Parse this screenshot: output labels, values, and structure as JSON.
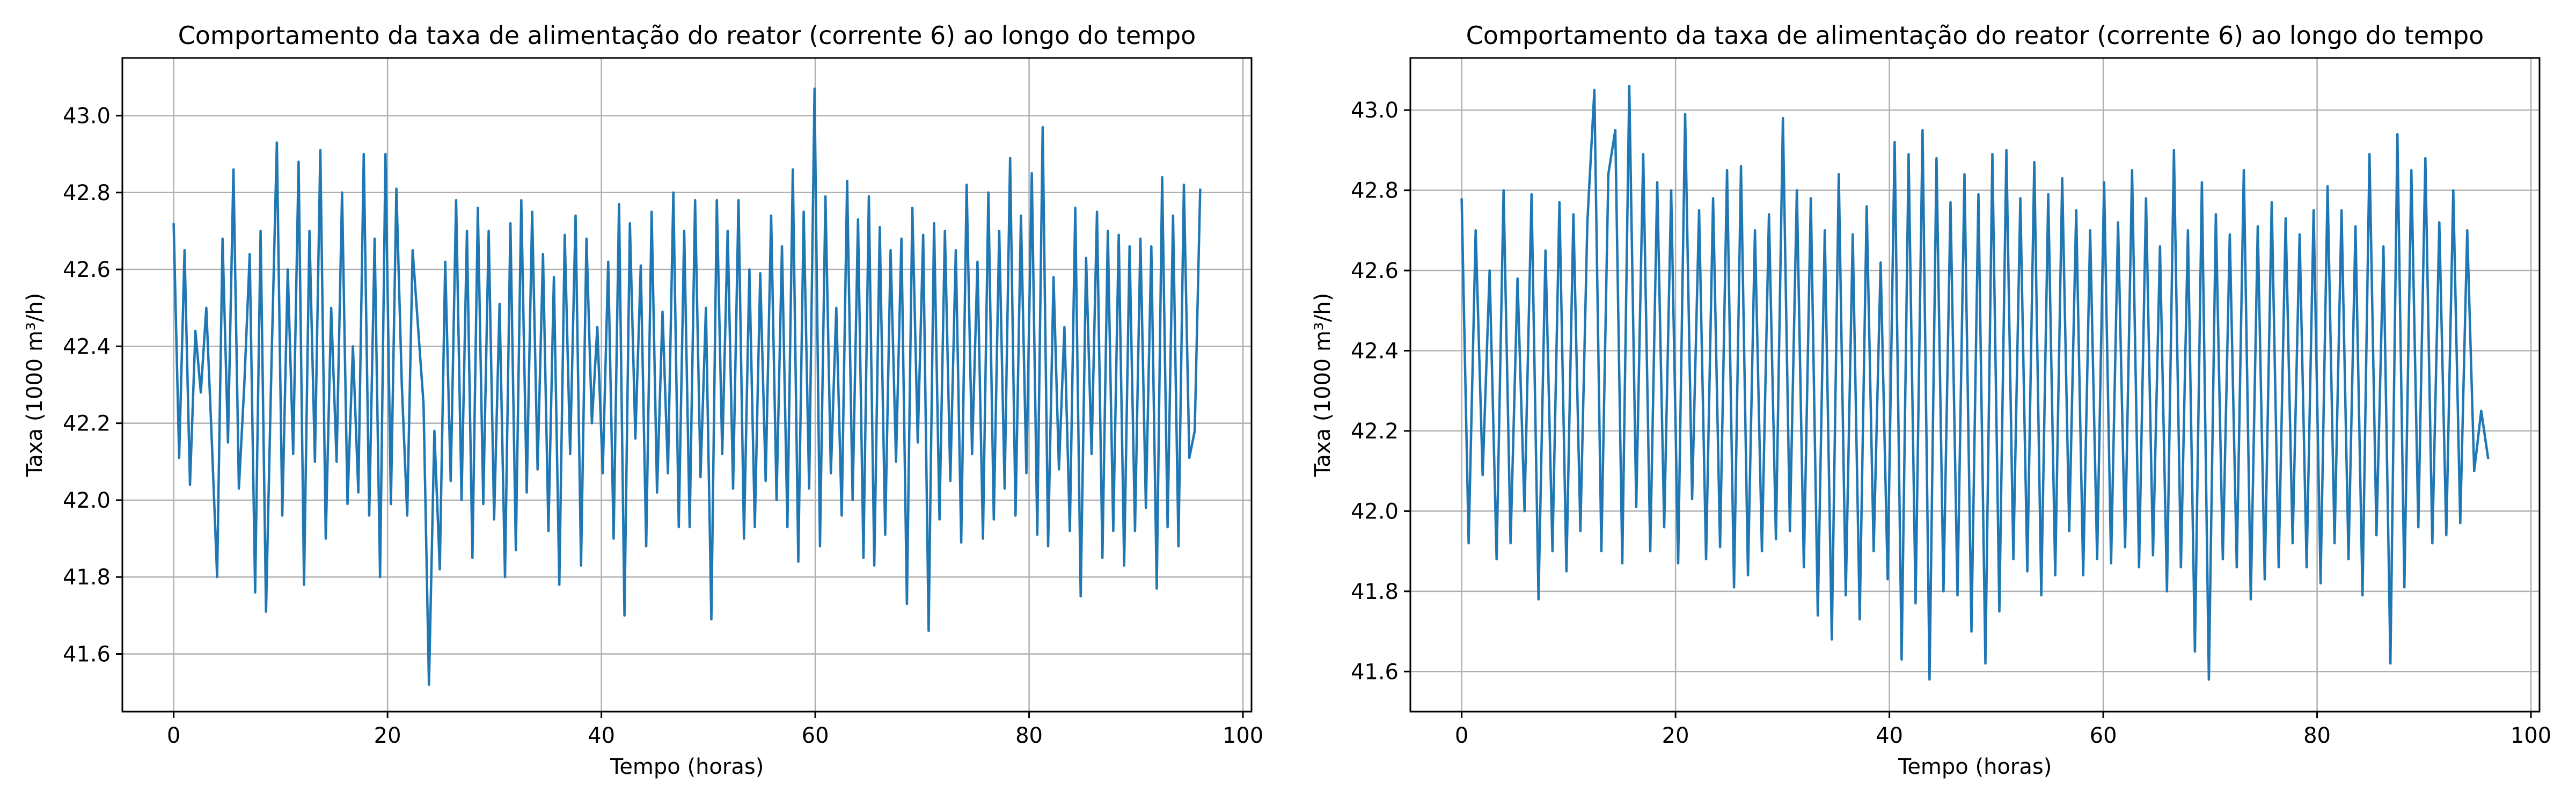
{
  "chart_data": [
    {
      "type": "line",
      "title": "Comportamento da taxa de alimentação do reator (corrente 6) ao longo do tempo",
      "xlabel": "Tempo (horas)",
      "ylabel": "Taxa (1000 m³/h)",
      "xlim": [
        -4.8,
        100.8
      ],
      "ylim": [
        41.45,
        43.15
      ],
      "xticks": [
        0,
        20,
        40,
        60,
        80,
        100
      ],
      "yticks": [
        41.6,
        41.8,
        42.0,
        42.2,
        42.4,
        42.6,
        42.8,
        43.0
      ],
      "grid": true,
      "color": "#1f77b4",
      "x_range": [
        0,
        96
      ],
      "series": [
        {
          "values": [
            42.72,
            42.11,
            42.65,
            42.04,
            42.44,
            42.28,
            42.5,
            42.16,
            41.8,
            42.68,
            42.15,
            42.86,
            42.03,
            42.3,
            42.64,
            41.76,
            42.7,
            41.71,
            42.35,
            42.93,
            41.96,
            42.6,
            42.12,
            42.88,
            41.78,
            42.7,
            42.1,
            42.91,
            41.9,
            42.5,
            42.1,
            42.8,
            41.99,
            42.4,
            42.02,
            42.9,
            41.96,
            42.68,
            41.8,
            42.9,
            41.99,
            42.81,
            42.3,
            41.96,
            42.65,
            42.45,
            42.25,
            41.52,
            42.18,
            41.82,
            42.62,
            42.05,
            42.78,
            42.0,
            42.7,
            41.85,
            42.76,
            41.99,
            42.7,
            41.95,
            42.51,
            41.8,
            42.72,
            41.87,
            42.78,
            42.02,
            42.75,
            42.08,
            42.64,
            41.92,
            42.58,
            41.78,
            42.69,
            42.12,
            42.74,
            41.83,
            42.68,
            42.2,
            42.45,
            42.07,
            42.62,
            41.9,
            42.77,
            41.7,
            42.72,
            42.16,
            42.61,
            41.88,
            42.75,
            42.02,
            42.49,
            42.07,
            42.8,
            41.93,
            42.7,
            41.93,
            42.78,
            42.06,
            42.5,
            41.69,
            42.78,
            42.12,
            42.7,
            42.03,
            42.78,
            41.9,
            42.6,
            41.93,
            42.59,
            42.05,
            42.74,
            42.0,
            42.66,
            41.93,
            42.86,
            41.84,
            42.75,
            42.03,
            43.07,
            41.88,
            42.79,
            42.07,
            42.5,
            41.96,
            42.83,
            42.0,
            42.73,
            41.85,
            42.79,
            41.83,
            42.71,
            41.91,
            42.65,
            42.1,
            42.68,
            41.73,
            42.76,
            42.15,
            42.69,
            41.66,
            42.72,
            41.95,
            42.7,
            42.05,
            42.65,
            41.89,
            42.82,
            42.12,
            42.62,
            41.9,
            42.8,
            41.95,
            42.7,
            42.03,
            42.89,
            41.96,
            42.74,
            42.07,
            42.85,
            41.91,
            42.97,
            41.88,
            42.58,
            42.08,
            42.45,
            41.92,
            42.76,
            41.75,
            42.63,
            42.12,
            42.75,
            41.85,
            42.7,
            41.92,
            42.69,
            41.83,
            42.66,
            41.92,
            42.68,
            41.98,
            42.66,
            41.77,
            42.84,
            41.93,
            42.74,
            41.88,
            42.82,
            42.11,
            42.18,
            42.81
          ]
        }
      ]
    },
    {
      "type": "line",
      "title": "Comportamento da taxa de alimentação do reator (corrente 6) ao longo do tempo",
      "xlabel": "Tempo (horas)",
      "ylabel": "Taxa (1000 m³/h)",
      "xlim": [
        -4.8,
        100.8
      ],
      "ylim": [
        41.5,
        43.13
      ],
      "xticks": [
        0,
        20,
        40,
        60,
        80,
        100
      ],
      "yticks": [
        41.6,
        41.8,
        42.0,
        42.2,
        42.4,
        42.6,
        42.8,
        43.0
      ],
      "grid": true,
      "color": "#1f77b4",
      "x_range": [
        0,
        96
      ],
      "series": [
        {
          "values": [
            42.78,
            41.92,
            42.7,
            42.09,
            42.6,
            41.88,
            42.8,
            41.92,
            42.58,
            42.0,
            42.79,
            41.78,
            42.65,
            41.9,
            42.77,
            41.85,
            42.74,
            41.95,
            42.72,
            43.05,
            41.9,
            42.84,
            42.95,
            41.87,
            43.06,
            42.01,
            42.89,
            41.9,
            42.82,
            41.96,
            42.8,
            41.87,
            42.99,
            42.03,
            42.75,
            41.88,
            42.78,
            41.91,
            42.85,
            41.81,
            42.86,
            41.84,
            42.7,
            41.9,
            42.74,
            41.93,
            42.98,
            41.95,
            42.8,
            41.86,
            42.78,
            41.74,
            42.7,
            41.68,
            42.84,
            41.79,
            42.69,
            41.73,
            42.76,
            41.9,
            42.62,
            41.83,
            42.92,
            41.63,
            42.89,
            41.77,
            42.95,
            41.58,
            42.88,
            41.8,
            42.77,
            41.79,
            42.84,
            41.7,
            42.79,
            41.62,
            42.89,
            41.75,
            42.9,
            41.88,
            42.78,
            41.85,
            42.87,
            41.79,
            42.79,
            41.84,
            42.83,
            41.95,
            42.75,
            41.84,
            42.7,
            41.88,
            42.82,
            41.87,
            42.72,
            41.91,
            42.85,
            41.86,
            42.78,
            41.89,
            42.66,
            41.8,
            42.9,
            41.86,
            42.7,
            41.65,
            42.82,
            41.58,
            42.74,
            41.88,
            42.69,
            41.86,
            42.85,
            41.78,
            42.71,
            41.83,
            42.77,
            41.86,
            42.73,
            41.92,
            42.69,
            41.86,
            42.75,
            41.82,
            42.81,
            41.92,
            42.75,
            41.88,
            42.71,
            41.79,
            42.89,
            41.94,
            42.66,
            41.62,
            42.94,
            41.81,
            42.85,
            41.96,
            42.88,
            41.92,
            42.72,
            41.94,
            42.8,
            41.97,
            42.7,
            42.1,
            42.25,
            42.13
          ]
        }
      ]
    }
  ]
}
